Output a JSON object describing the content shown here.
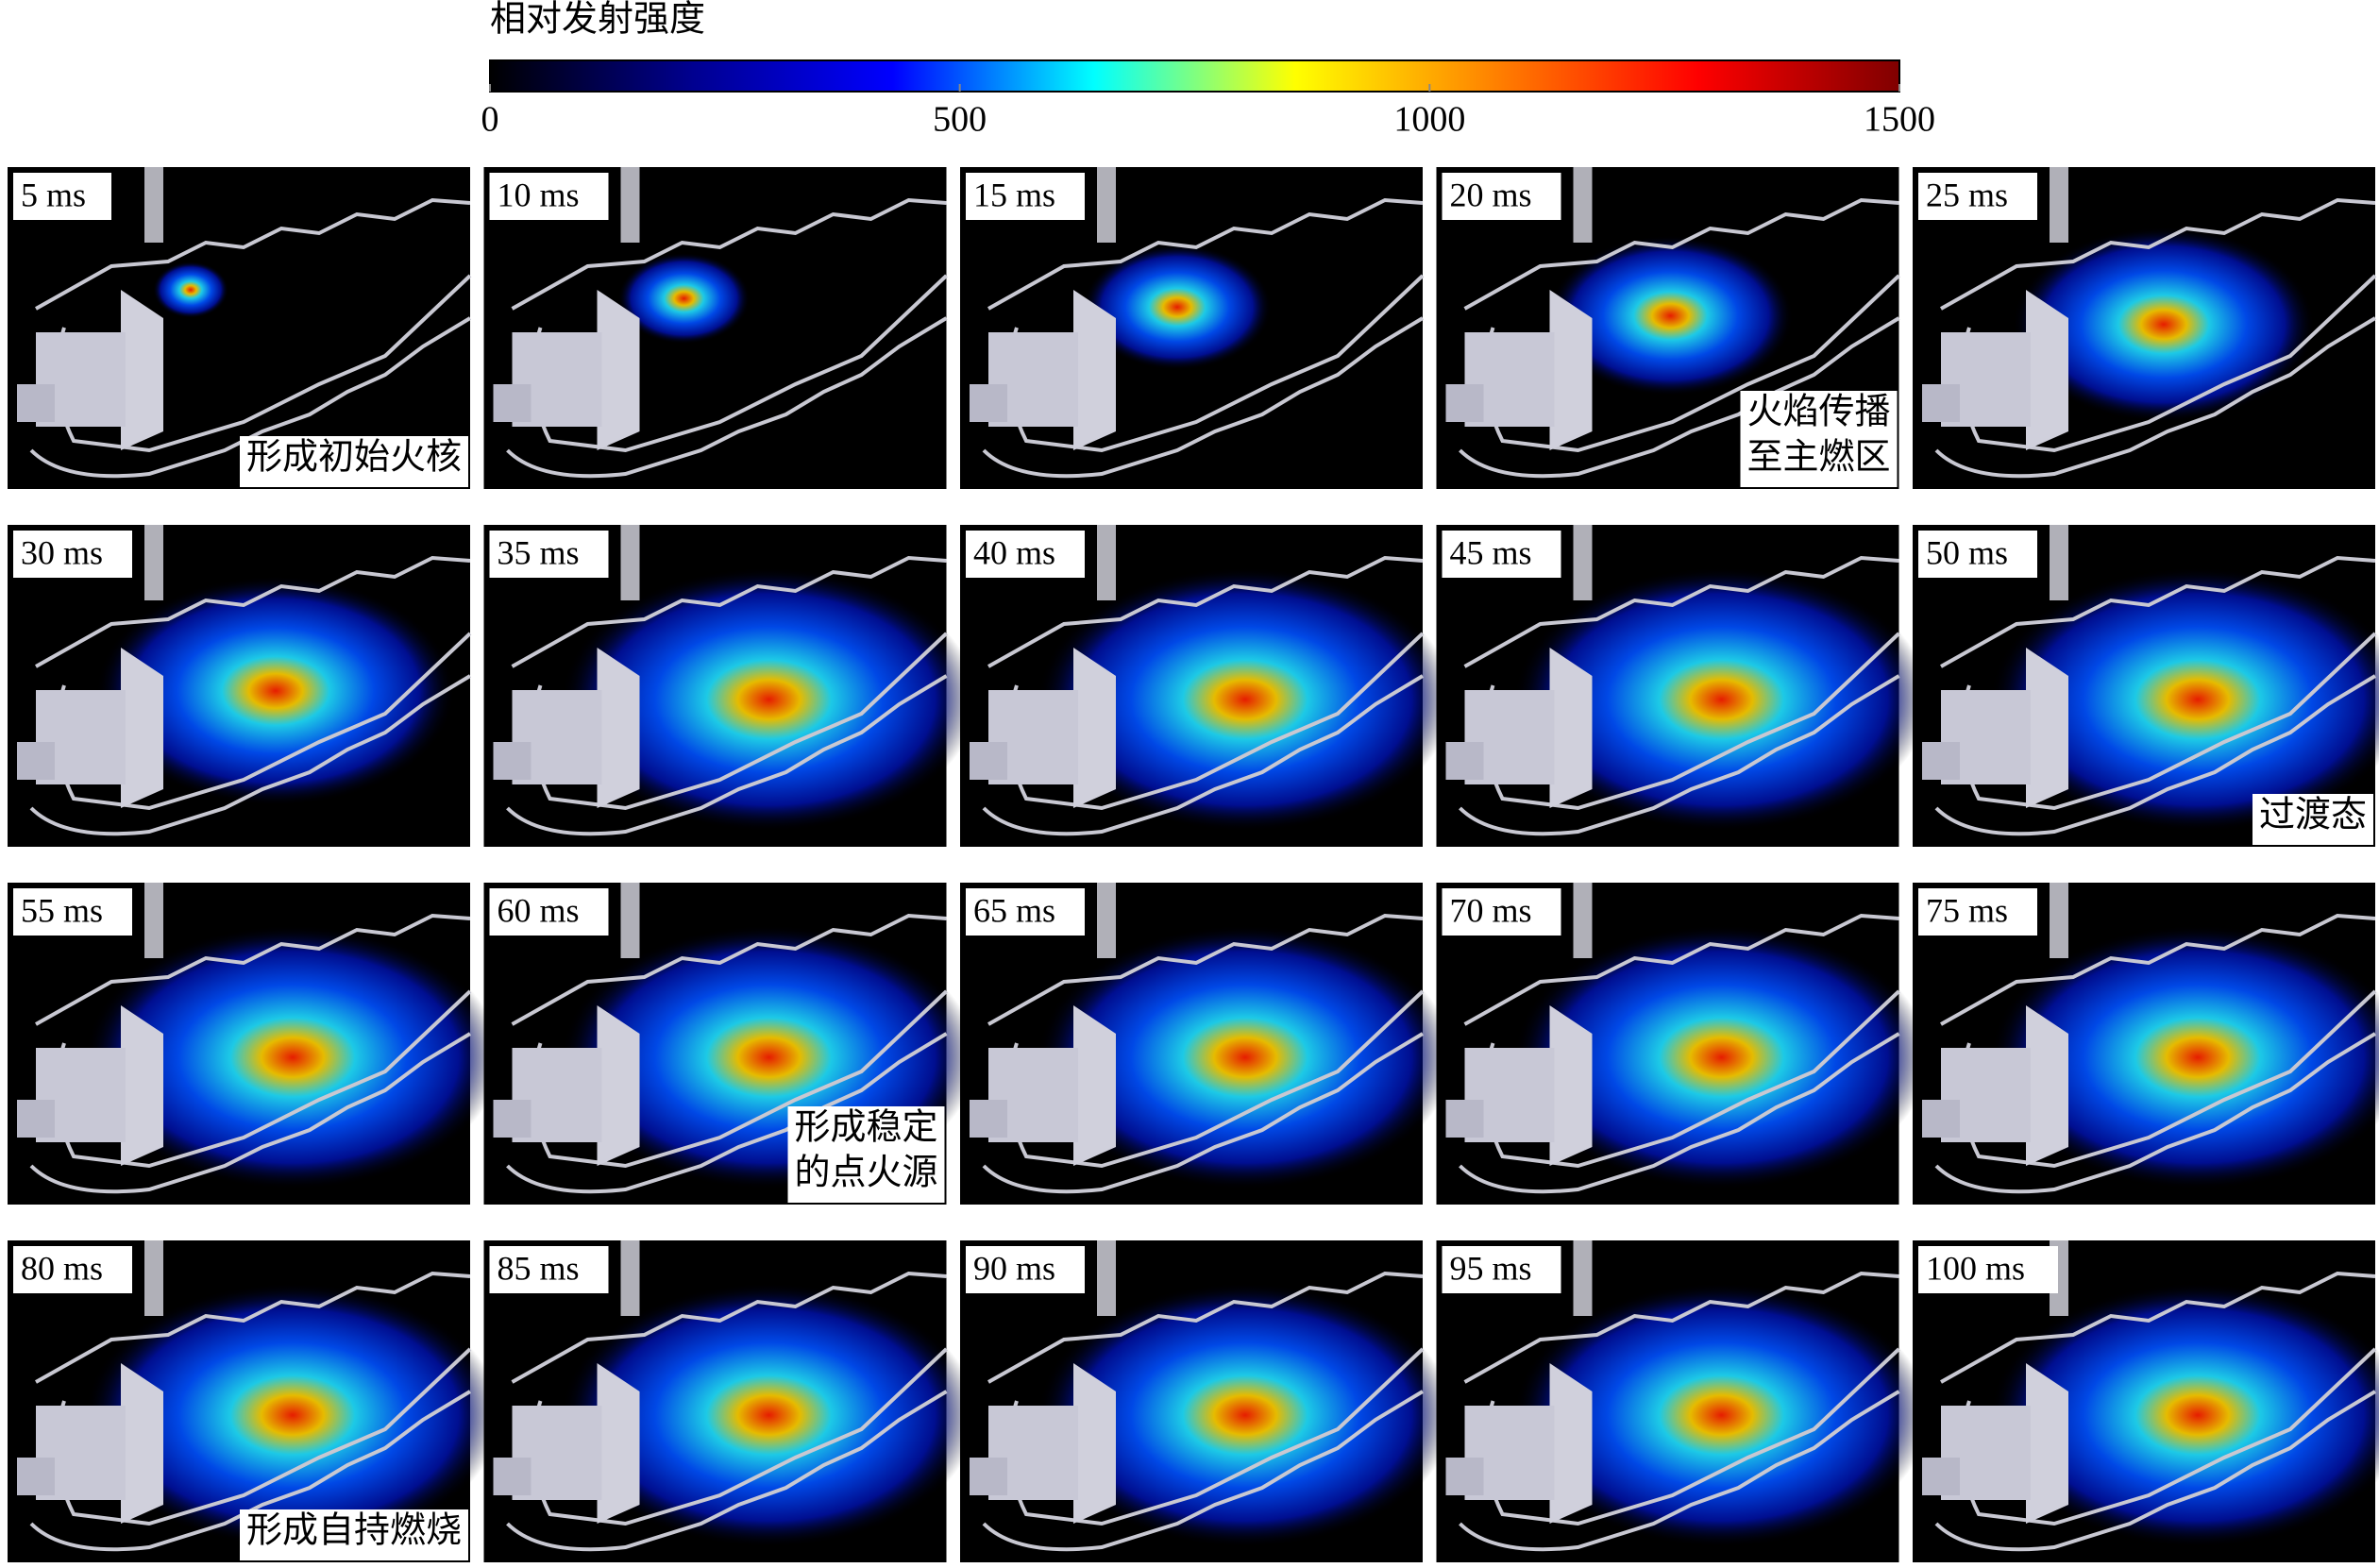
{
  "colorbar": {
    "title": "相对发射强度",
    "lim": [
      0,
      1500
    ],
    "ticks": [
      0,
      500,
      1000,
      1500
    ],
    "colors": [
      "#000000",
      "#00008f",
      "#0000ff",
      "#00ffff",
      "#ffff00",
      "#ff8000",
      "#ff0000",
      "#800000"
    ]
  },
  "panels": [
    {
      "label": "5 ms",
      "annotation": [
        "形成初始火核"
      ]
    },
    {
      "label": "10 ms"
    },
    {
      "label": "15 ms"
    },
    {
      "label": "20 ms",
      "annotation": [
        "火焰传播",
        "至主燃区"
      ]
    },
    {
      "label": "25 ms"
    },
    {
      "label": "30 ms"
    },
    {
      "label": "35 ms"
    },
    {
      "label": "40 ms"
    },
    {
      "label": "45 ms"
    },
    {
      "label": "50 ms",
      "annotation": [
        "过渡态"
      ]
    },
    {
      "label": "55 ms"
    },
    {
      "label": "60 ms",
      "annotation": [
        "形成稳定",
        "的点火源"
      ]
    },
    {
      "label": "65 ms"
    },
    {
      "label": "70 ms"
    },
    {
      "label": "75 ms"
    },
    {
      "label": "80 ms",
      "annotation": [
        "形成自持燃烧"
      ]
    },
    {
      "label": "85 ms"
    },
    {
      "label": "90 ms"
    },
    {
      "label": "95 ms"
    },
    {
      "label": "100 ms"
    }
  ]
}
